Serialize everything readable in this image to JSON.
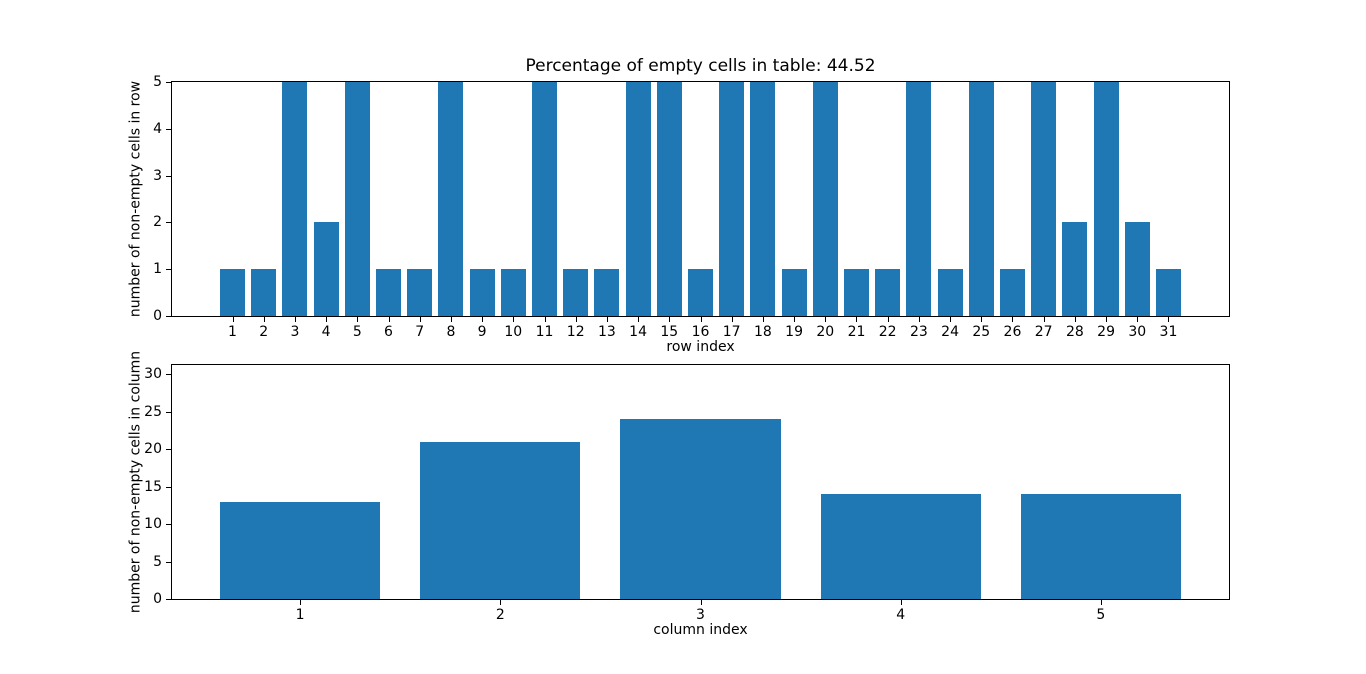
{
  "figure": {
    "background": "#ffffff"
  },
  "chart_data": [
    {
      "type": "bar",
      "title": "Percentage of empty cells in table: 44.52",
      "xlabel": "row index",
      "ylabel": "number of non-empty cells in row",
      "categories": [
        1,
        2,
        3,
        4,
        5,
        6,
        7,
        8,
        9,
        10,
        11,
        12,
        13,
        14,
        15,
        16,
        17,
        18,
        19,
        20,
        21,
        22,
        23,
        24,
        25,
        26,
        27,
        28,
        29,
        30,
        31
      ],
      "values": [
        1,
        1,
        5,
        2,
        5,
        1,
        1,
        5,
        1,
        1,
        5,
        1,
        1,
        5,
        5,
        1,
        5,
        5,
        1,
        5,
        1,
        1,
        5,
        1,
        5,
        1,
        5,
        2,
        5,
        2,
        1
      ],
      "yticks": [
        0,
        1,
        2,
        3,
        4,
        5
      ],
      "xlim": [
        -0.94,
        32.94
      ],
      "ylim": [
        0,
        5
      ],
      "bar_color": "#1f77b4",
      "bar_width": 0.8,
      "grid": false,
      "legend": false
    },
    {
      "type": "bar",
      "title": "",
      "xlabel": "column index",
      "ylabel": "number of non-empty cells in column",
      "categories": [
        1,
        2,
        3,
        4,
        5
      ],
      "values": [
        13,
        21,
        24,
        14,
        14
      ],
      "yticks": [
        0,
        5,
        10,
        15,
        20,
        25,
        30
      ],
      "xlim": [
        0.36,
        5.64
      ],
      "ylim": [
        0,
        31.2
      ],
      "bar_color": "#1f77b4",
      "bar_width": 0.8,
      "grid": false,
      "legend": false
    }
  ]
}
